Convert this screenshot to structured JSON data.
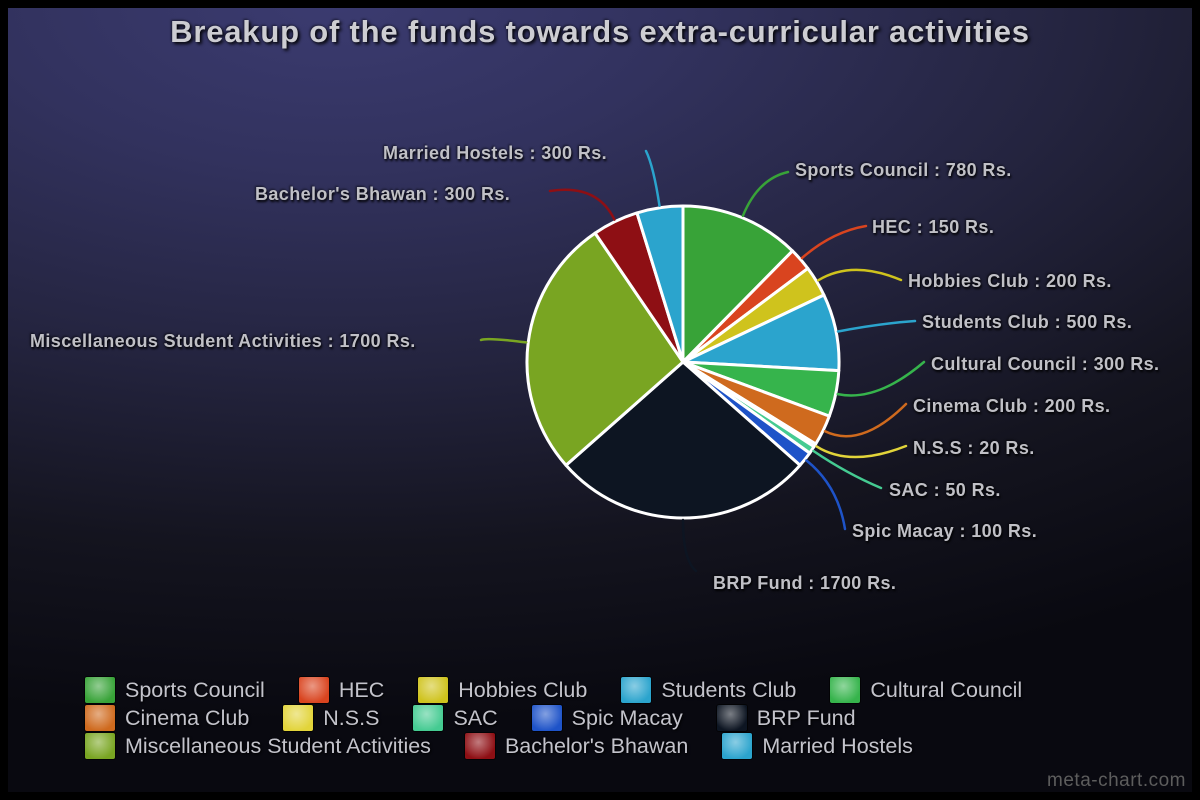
{
  "title": "Breakup of the funds towards extra-curricular activities",
  "watermark": "meta-chart.com",
  "chart_data": {
    "type": "pie",
    "title": "Breakup of the funds towards extra-curricular activities",
    "unit": "Rs.",
    "total_value": 6300,
    "start_angle_deg": -90,
    "direction": "clockwise",
    "slice_border_color": "#ffffff",
    "legend_position": "bottom",
    "legend_rows": [
      [
        0,
        1,
        2,
        3,
        4
      ],
      [
        5,
        6,
        7,
        8,
        9
      ],
      [
        10,
        11,
        12
      ]
    ],
    "background": {
      "top": "#3b3b70",
      "bottom": "#090910"
    },
    "slices": [
      {
        "label": "Sports Council",
        "value": 780,
        "color": "#38a338",
        "callout": "Sports Council : 780 Rs."
      },
      {
        "label": "HEC",
        "value": 150,
        "color": "#d9441f",
        "callout": "HEC : 150 Rs."
      },
      {
        "label": "Hobbies Club",
        "value": 200,
        "color": "#cfc31d",
        "callout": "Hobbies Club : 200 Rs."
      },
      {
        "label": "Students Club",
        "value": 500,
        "color": "#2ba4cd",
        "callout": "Students Club : 500 Rs."
      },
      {
        "label": "Cultural Council",
        "value": 300,
        "color": "#36b44c",
        "callout": "Cultural Council : 300 Rs."
      },
      {
        "label": "Cinema Club",
        "value": 200,
        "color": "#cf6a1e",
        "callout": "Cinema Club : 200 Rs."
      },
      {
        "label": "N.S.S",
        "value": 20,
        "color": "#e2d43a",
        "callout": "N.S.S : 20 Rs."
      },
      {
        "label": "SAC",
        "value": 50,
        "color": "#45cb92",
        "callout": "SAC : 50 Rs."
      },
      {
        "label": "Spic Macay",
        "value": 100,
        "color": "#1e53c8",
        "callout": "Spic Macay : 100 Rs."
      },
      {
        "label": "BRP Fund",
        "value": 1700,
        "color": "#0d1522",
        "callout": "BRP Fund : 1700 Rs."
      },
      {
        "label": "Miscellaneous Student Activities",
        "value": 1700,
        "color": "#79a522",
        "callout": "Miscellaneous Student Activities : 1700 Rs."
      },
      {
        "label": "Bachelor's Bhawan",
        "value": 300,
        "color": "#8e0f14",
        "callout": "Bachelor's Bhawan : 300 Rs."
      },
      {
        "label": "Married Hostels",
        "value": 300,
        "color": "#2ba4cd",
        "callout": "Married Hostels : 300 Rs."
      }
    ]
  }
}
